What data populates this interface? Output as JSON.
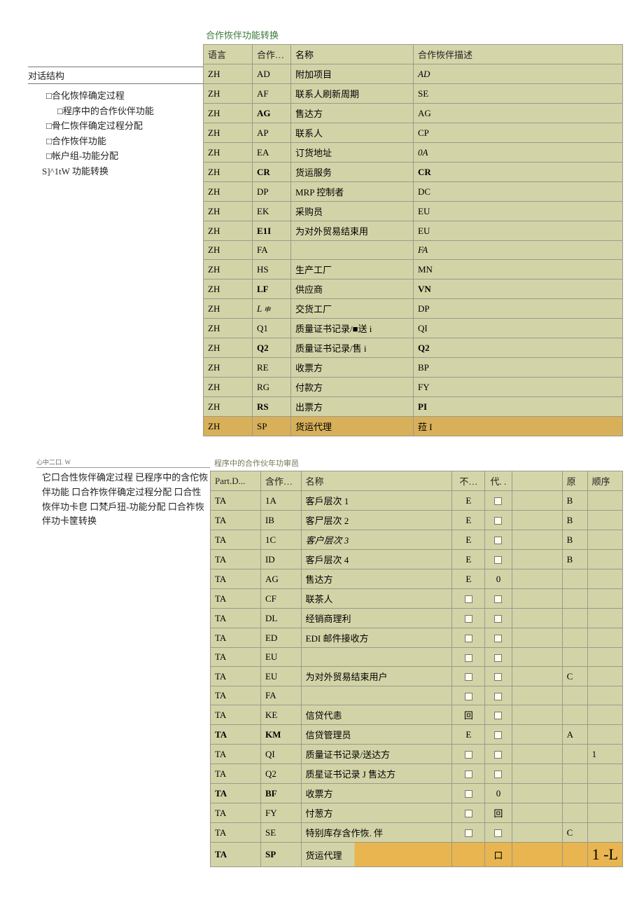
{
  "colors": {
    "table_bg": "#d2d4a8",
    "table_border": "#9a9a88",
    "highlight_row": "#d8b05a",
    "title_green": "#3a7a3a",
    "page_bg": "#ffffff"
  },
  "section1": {
    "sidebar": {
      "title": "对话结构",
      "items": [
        {
          "lv": 1,
          "label": "□合化恢悴确定过程"
        },
        {
          "lv": 2,
          "label": "□程序中的合作伙伴功能"
        },
        {
          "lv": 1,
          "label": "□骨仁恢伴确定过程分配"
        },
        {
          "lv": 1,
          "label": "□合作恢伴功能"
        },
        {
          "lv": 1,
          "label": "□帐户组-功能分配"
        },
        {
          "lv": 0,
          "label": "S]^1tW 功能转换"
        }
      ]
    },
    "panel": {
      "title": "合作恢伴功能转换",
      "cols": [
        "语言",
        "合作…",
        "名称",
        "合作恢伴描述"
      ],
      "rows": [
        {
          "c": [
            "ZH",
            "AD",
            "附加项目",
            "AD"
          ],
          "b2": false,
          "i4": true
        },
        {
          "c": [
            "ZH",
            "AF",
            "联系人刷新周期",
            "SE"
          ],
          "b2": false
        },
        {
          "c": [
            "ZH",
            "AG",
            "售达方",
            "AG"
          ],
          "b2": true
        },
        {
          "c": [
            "ZH",
            "AP",
            "联系人",
            "CP"
          ],
          "b2": false
        },
        {
          "c": [
            "ZH",
            "EA",
            "订货地址",
            "0A"
          ],
          "b2": false,
          "i4": true
        },
        {
          "c": [
            "ZH",
            "CR",
            "货运服务",
            "CR"
          ],
          "b2": true,
          "b4": true
        },
        {
          "c": [
            "ZH",
            "DP",
            "MRP 控制者",
            "DC"
          ],
          "b2": false
        },
        {
          "c": [
            "ZH",
            "EK",
            "采购员",
            "EU"
          ],
          "b2": false
        },
        {
          "c": [
            "ZH",
            "E1I",
            "为对外贸易结束用",
            "EU"
          ],
          "b2": true
        },
        {
          "c": [
            "ZH",
            "FA",
            "",
            "FA"
          ],
          "b2": false,
          "i4": true
        },
        {
          "c": [
            "ZH",
            "HS",
            "生产工厂",
            "MN"
          ],
          "b2": false
        },
        {
          "c": [
            "ZH",
            "LF",
            "供应商",
            "VN"
          ],
          "b2": true,
          "b4": true
        },
        {
          "c": [
            "ZH",
            "L ",
            "交货工厂",
            "DP"
          ],
          "i2": true,
          "suffix2": "申"
        },
        {
          "c": [
            "ZH",
            "Q1",
            "质量证书记录/■送 i",
            "QI"
          ],
          "b2": false
        },
        {
          "c": [
            "ZH",
            "Q2",
            "质量证书记录/售 i",
            "Q2"
          ],
          "b2": true,
          "b4": true
        },
        {
          "c": [
            "ZH",
            "RE",
            "收票方",
            "BP"
          ],
          "b2": false
        },
        {
          "c": [
            "ZH",
            "RG",
            "付款方",
            "FY"
          ],
          "b2": false
        },
        {
          "c": [
            "ZH",
            "RS",
            "出票方",
            "PI"
          ],
          "b2": true,
          "b4": true
        },
        {
          "c": [
            "ZH",
            "SP",
            "货运代理",
            "菈 I"
          ],
          "b2": false,
          "hl": true
        }
      ]
    }
  },
  "section2": {
    "sidebar": {
      "small": "心中二口. W",
      "body": "它口合性恢伴确定过程 已程序中的含佗恢伴功能 口合祚恢伴确定过程分配 口合性恢伴功卡皀 口梵戶狃-功能分配 口合祚恢伴功卡筐转换"
    },
    "panel": {
      "title": "程序中的合作伙年功审邑",
      "cols": [
        "Part.D...",
        "含作…",
        "名称",
        "不…",
        "代. .",
        "",
        "原",
        "顺序"
      ],
      "rows": [
        {
          "c": [
            "TA",
            "1A",
            "客戶层次 1",
            "E",
            "□",
            "",
            "B",
            ""
          ]
        },
        {
          "c": [
            "TA",
            "IB",
            "客尸层次 2",
            "E",
            "□",
            "",
            "B",
            ""
          ]
        },
        {
          "c": [
            "TA",
            "1C",
            "客户层次 3",
            "E",
            "□",
            "",
            "B",
            ""
          ],
          "i3": true
        },
        {
          "c": [
            "TA",
            "ID",
            "客戶层次 4",
            "E",
            "□",
            "",
            "B",
            ""
          ]
        },
        {
          "c": [
            "TA",
            "AG",
            "售达方",
            "E",
            "0",
            "",
            "",
            ""
          ]
        },
        {
          "c": [
            "TA",
            "CF",
            "联茶人",
            "□",
            "□",
            "",
            "",
            ""
          ]
        },
        {
          "c": [
            "TA",
            "DL",
            "经销商理利",
            "□",
            "□",
            "",
            "",
            ""
          ]
        },
        {
          "c": [
            "TA",
            "ED",
            "EDI 邮件接收方",
            "□",
            "□",
            "",
            "",
            ""
          ]
        },
        {
          "c": [
            "TA",
            "EU",
            "",
            "□",
            "□",
            "",
            "",
            ""
          ]
        },
        {
          "c": [
            "TA",
            "EU",
            "为对外贸易结束用户",
            "□",
            "□",
            "",
            "C",
            ""
          ]
        },
        {
          "c": [
            "TA",
            "FA",
            "",
            "□",
            "□",
            "",
            "",
            ""
          ]
        },
        {
          "c": [
            "TA",
            "KE",
            "信贷代恚",
            "回",
            "□",
            "",
            "",
            ""
          ]
        },
        {
          "c": [
            "TA",
            "KM",
            "信贷管理员",
            "E",
            "□",
            "",
            "A",
            ""
          ],
          "b1": true,
          "b2": true
        },
        {
          "c": [
            "TA",
            "QI",
            "质量证书记录/送达方",
            "□",
            "□",
            "",
            "",
            "1"
          ]
        },
        {
          "c": [
            "TA",
            "Q2",
            "质星证书记录 J 售达方",
            "□",
            "□",
            "",
            "",
            ""
          ]
        },
        {
          "c": [
            "TA",
            "BF",
            "收票方",
            "□",
            "0",
            "",
            "",
            ""
          ],
          "b1": true,
          "b2": true
        },
        {
          "c": [
            "TA",
            "FY",
            "忖葱方",
            "□",
            "回",
            "",
            "",
            ""
          ]
        },
        {
          "c": [
            "TA",
            "SE",
            "特别库存含作恢. 伴",
            "□",
            "□",
            "",
            "C",
            ""
          ]
        },
        {
          "c": [
            "TA",
            "SP",
            "货运代理",
            "",
            "口",
            "",
            "",
            "1 -L"
          ],
          "b1": true,
          "b2": true,
          "hl2": true,
          "big8": true
        }
      ]
    }
  }
}
